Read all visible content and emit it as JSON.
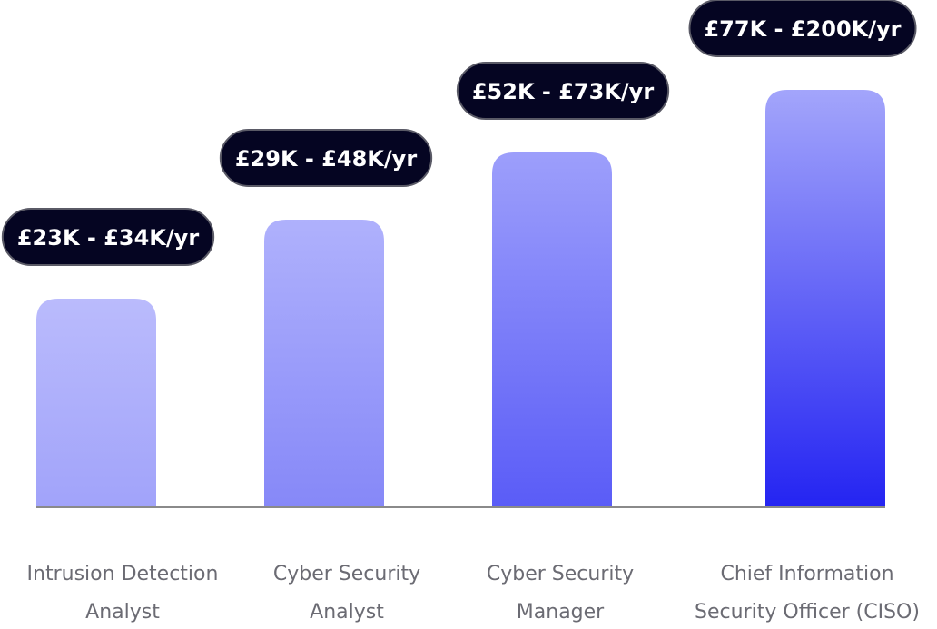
{
  "chart_data": {
    "type": "bar",
    "title": "",
    "xlabel": "",
    "ylabel": "",
    "categories": [
      [
        "Intrusion Detection",
        "Analyst"
      ],
      [
        "Cyber Security",
        "Analyst"
      ],
      [
        "Cyber Security",
        "Manager"
      ],
      [
        "Chief  Information",
        "Security Officer (CISO)"
      ]
    ],
    "range_labels": [
      "£23K - £34K/yr",
      "£29K - £48K/yr",
      "£52K - £73K/yr",
      "£77K - £200K/yr"
    ],
    "values": [
      {
        "min": 23,
        "max": 34
      },
      {
        "min": 29,
        "max": 48
      },
      {
        "min": 52,
        "max": 73
      },
      {
        "min": 77,
        "max": 200
      }
    ],
    "bar_levels": [
      0.5,
      0.69,
      0.85,
      1.0
    ],
    "grid": false,
    "legend": "none",
    "colors": {
      "bar_top_light": "#b8b9fb",
      "bar_bottom_dark": "#2626f2",
      "pill_fill": "#050522",
      "pill_border": "#5a5a66",
      "pill_text": "#ffffff",
      "baseline": "#8a8a8a",
      "category_text": "#6b6b73"
    }
  }
}
